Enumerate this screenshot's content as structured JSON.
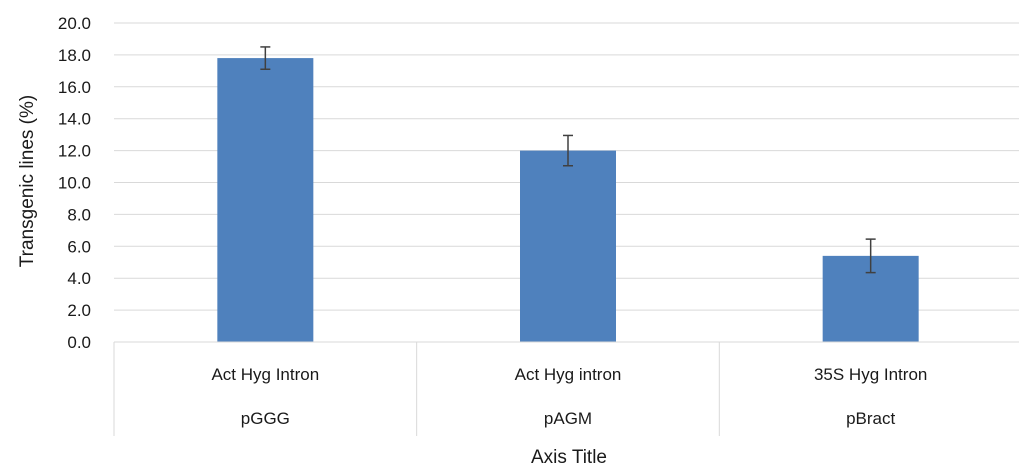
{
  "chart_data": {
    "type": "bar",
    "categories": [
      {
        "label": "Act Hyg Intron",
        "group": "pGGG"
      },
      {
        "label": "Act Hyg intron",
        "group": "pAGM"
      },
      {
        "label": "35S Hyg Intron",
        "group": "pBract"
      }
    ],
    "series": [
      {
        "values": [
          17.8,
          12.0,
          5.4
        ],
        "error": [
          0.7,
          0.95,
          1.05
        ],
        "color": "#4f81bd"
      }
    ],
    "ylabel": "Transgenic lines (%)",
    "xlabel": "Axis Title",
    "ylim": [
      0,
      20
    ],
    "ytick_step": 2,
    "ytick_labels": [
      "0.0",
      "2.0",
      "4.0",
      "6.0",
      "8.0",
      "10.0",
      "12.0",
      "14.0",
      "16.0",
      "18.0",
      "20.0"
    ],
    "grid": true,
    "gridline_color": "#d9d9d9",
    "errorbar_color": "#404040",
    "legend": "none"
  }
}
